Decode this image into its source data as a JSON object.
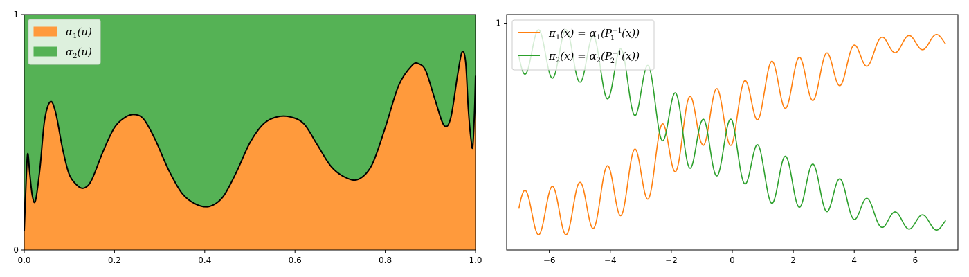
{
  "chart_data": [
    {
      "type": "area",
      "stacked": true,
      "title": "",
      "xlabel": "",
      "ylabel": "",
      "xlim": [
        0,
        1
      ],
      "ylim": [
        0,
        1
      ],
      "xticks": [
        "0.0",
        "0.2",
        "0.4",
        "0.6",
        "0.8",
        "1.0"
      ],
      "yticks": [
        "0",
        "1"
      ],
      "grid": false,
      "legend_position": "top-left",
      "x": [
        0,
        0.005,
        0.008,
        0.012,
        0.018,
        0.025,
        0.035,
        0.045,
        0.058,
        0.07,
        0.085,
        0.1,
        0.12,
        0.135,
        0.15,
        0.175,
        0.2,
        0.225,
        0.245,
        0.265,
        0.29,
        0.32,
        0.35,
        0.38,
        0.41,
        0.44,
        0.47,
        0.5,
        0.53,
        0.56,
        0.59,
        0.62,
        0.65,
        0.68,
        0.71,
        0.74,
        0.77,
        0.8,
        0.83,
        0.86,
        0.875,
        0.89,
        0.91,
        0.93,
        0.945,
        0.96,
        0.97,
        0.978,
        0.984,
        0.99,
        0.994,
        0.998,
        1.0
      ],
      "series": [
        {
          "name": "α1(u)",
          "color": "#ff9a3c",
          "values": [
            0.08,
            0.33,
            0.41,
            0.33,
            0.23,
            0.21,
            0.35,
            0.55,
            0.63,
            0.58,
            0.43,
            0.32,
            0.27,
            0.265,
            0.3,
            0.42,
            0.52,
            0.565,
            0.575,
            0.555,
            0.47,
            0.34,
            0.24,
            0.195,
            0.185,
            0.225,
            0.33,
            0.455,
            0.535,
            0.565,
            0.565,
            0.535,
            0.445,
            0.355,
            0.31,
            0.3,
            0.36,
            0.52,
            0.7,
            0.785,
            0.79,
            0.76,
            0.64,
            0.53,
            0.56,
            0.74,
            0.84,
            0.8,
            0.6,
            0.47,
            0.44,
            0.6,
            0.74
          ]
        },
        {
          "name": "α2(u)",
          "color": "#55b255",
          "values_note": "",
          "values": [
            0.92,
            0.67,
            0.59,
            0.67,
            0.77,
            0.79,
            0.65,
            0.45,
            0.37,
            0.42,
            0.57,
            0.68,
            0.73,
            0.735,
            0.7,
            0.58,
            0.48,
            0.435,
            0.425,
            0.445,
            0.53,
            0.66,
            0.76,
            0.805,
            0.815,
            0.775,
            0.67,
            0.545,
            0.465,
            0.435,
            0.435,
            0.465,
            0.555,
            0.645,
            0.69,
            0.7,
            0.64,
            0.48,
            0.3,
            0.215,
            0.21,
            0.24,
            0.36,
            0.47,
            0.44,
            0.26,
            0.16,
            0.2,
            0.4,
            0.53,
            0.56,
            0.4,
            0.26
          ]
        }
      ]
    },
    {
      "type": "line",
      "title": "",
      "xlabel": "",
      "ylabel": "",
      "xlim": [
        -7.4,
        7.4
      ],
      "ylim": [
        -0.04,
        1.04
      ],
      "xticks": [
        "−6",
        "−4",
        "−2",
        "0",
        "2",
        "4",
        "6"
      ],
      "yticks": [
        "1"
      ],
      "grid": false,
      "legend_position": "top-left",
      "x_range": [
        -7,
        7
      ],
      "series": [
        {
          "name": "π1(x) = α1(P1−1(x))",
          "color": "#ff7f0e",
          "trend_anchors": {
            "x": [
              -7,
              -5,
              -3,
              -1,
              0,
              1,
              3,
              5,
              7
            ],
            "y": [
              0.13,
              0.15,
              0.3,
              0.58,
              0.56,
              0.7,
              0.76,
              0.9,
              0.92
            ]
          },
          "oscillation": {
            "period": 0.9,
            "amplitude": [
              0.1,
              0.12,
              0.14,
              0.14,
              0.12,
              0.12,
              0.1,
              0.04,
              0.03
            ]
          }
        },
        {
          "name": "π2(x) = α2(P2−1(x))",
          "color": "#2ca02c",
          "trend_anchors": {
            "x": [
              -7,
              -5,
              -3,
              -1,
              0,
              1,
              3,
              5,
              7
            ],
            "y": [
              0.87,
              0.85,
              0.7,
              0.42,
              0.44,
              0.3,
              0.24,
              0.1,
              0.08
            ]
          },
          "oscillation": {
            "period": 0.9,
            "amplitude": [
              0.1,
              0.12,
              0.14,
              0.14,
              0.12,
              0.12,
              0.1,
              0.04,
              0.03
            ]
          }
        }
      ]
    }
  ],
  "legend_left": {
    "item1_math": "α",
    "item1_sub": "1",
    "item1_arg": "(u)",
    "item2_math": "α",
    "item2_sub": "2",
    "item2_arg": "(u)"
  },
  "legend_right": {
    "item1_pre": "π",
    "item1_sub": "1",
    "item1_mid": "(x) = α",
    "item1_sub2": "1",
    "item1_p": "(P",
    "item1_sup": "−1",
    "item1_psub": "1",
    "item1_end": "(x))",
    "item2_pre": "π",
    "item2_sub": "2",
    "item2_mid": "(x) = α",
    "item2_sub2": "2",
    "item2_p": "(P",
    "item2_sup": "−1",
    "item2_psub": "2",
    "item2_end": "(x))"
  }
}
